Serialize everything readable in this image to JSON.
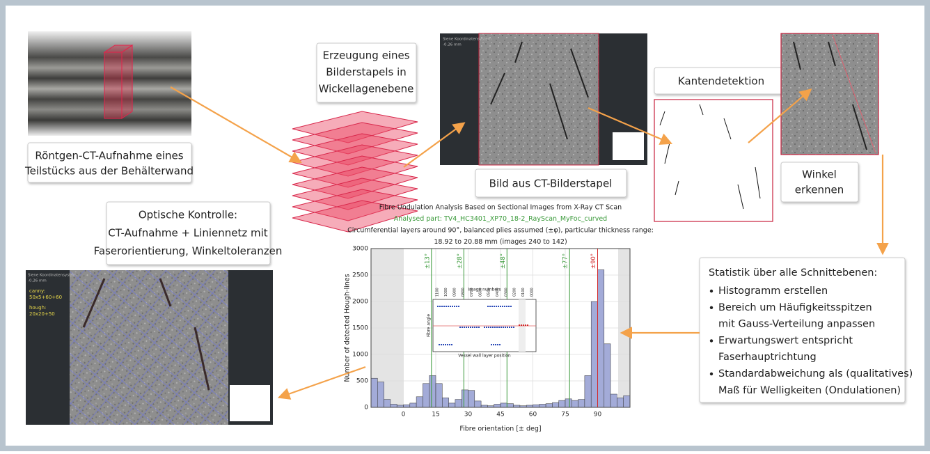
{
  "photo_caption": [
    "Röntgen-CT-Aufnahme eines",
    "Teilstücks aus der Behälterwand"
  ],
  "stack_caption": [
    "Erzeugung eines",
    "Bilderstapels in",
    "Wickellagenebene"
  ],
  "ct_image": {
    "overlay": [
      "Siene Koordinatensystem",
      "-0.26 mm"
    ]
  },
  "ct_caption": "Bild aus CT-Bilderstapel",
  "edge_caption": "Kantendetektion",
  "angle_caption": [
    "Winkel",
    "erkennen"
  ],
  "check_caption": [
    "Optische Kontrolle:",
    "CT-Aufnahme + Liniennetz mit",
    "Faserorientierung, Winkeltoleranzen"
  ],
  "check_image": {
    "overlay": [
      "Siene Koordinatensystem",
      "-0.26 mm"
    ],
    "params": [
      "canny:",
      "50x5+60+60",
      "hough:",
      "20x20+50"
    ]
  },
  "statistics": {
    "title": "Statistik über alle Schnittebenen:",
    "bullets": [
      [
        "Histogramm erstellen"
      ],
      [
        "Bereich um Häufigkeitsspitzen",
        "mit Gauss-Verteilung anpassen"
      ],
      [
        "Erwartungswert entspricht",
        "Faserhauptrichtung"
      ],
      [
        "Standardabweichung als (qualitatives)",
        "Maß für Welligkeiten (Ondulationen)"
      ]
    ]
  },
  "histogram": {
    "type": "histogram",
    "title": [
      "Fibre Undulation Analysis Based on Sectional Images from X-Ray CT Scan",
      "Analysed part: TV4_HC3401_XP70_18-2_RayScan_MyFoc_curved",
      "Circumferential layers around 90°, balanced plies assumed (±φ), particular thickness range:",
      "18.92 to 20.88 mm (images 240 to 142)"
    ],
    "title_colors": [
      "#222222",
      "#3a9a3a",
      "#222222",
      "#222222"
    ],
    "x_label": "Fibre orientation [± deg]",
    "y_label": "Number of detected Hough-lines",
    "bins": [
      -15,
      -12,
      -9,
      -6,
      -3,
      0,
      3,
      6,
      9,
      12,
      15,
      18,
      21,
      24,
      27,
      30,
      33,
      36,
      39,
      42,
      45,
      48,
      51,
      54,
      57,
      60,
      63,
      66,
      69,
      72,
      75,
      78,
      81,
      84,
      87,
      90,
      93,
      96,
      99,
      102,
      105
    ],
    "values": [
      550,
      480,
      150,
      60,
      40,
      50,
      80,
      200,
      450,
      600,
      450,
      180,
      80,
      150,
      330,
      320,
      120,
      40,
      30,
      60,
      80,
      70,
      40,
      30,
      40,
      50,
      60,
      70,
      90,
      130,
      160,
      130,
      150,
      600,
      2000,
      2600,
      1200,
      250,
      180,
      220
    ],
    "color": "#a3abd8",
    "xlim": [
      -15,
      105
    ],
    "ylim": [
      0,
      3000
    ],
    "xticks": [
      0,
      15,
      30,
      45,
      60,
      75,
      90
    ],
    "yticks": [
      0,
      500,
      1000,
      1500,
      2000,
      2500,
      3000
    ],
    "grid": true,
    "peaks": [
      {
        "value": 13,
        "label": "±13°",
        "color": "#3a9a3a"
      },
      {
        "value": 28,
        "label": "±28°",
        "color": "#3a9a3a"
      },
      {
        "value": 48,
        "label": "±48°",
        "color": "#3a9a3a"
      },
      {
        "value": 77,
        "label": "±77°",
        "color": "#3a9a3a"
      },
      {
        "value": 90,
        "label": "±90°",
        "color": "#d42a2a"
      }
    ],
    "inset": {
      "title": "Image numbers",
      "y_label": "Fibre angle",
      "x_label": "Vessel wall layer position",
      "ticks": [
        "1100",
        "1000",
        "0900",
        "0800",
        "0700",
        "0600",
        "0500",
        "0400",
        "0300",
        "0200",
        "0100",
        "0000"
      ]
    }
  }
}
